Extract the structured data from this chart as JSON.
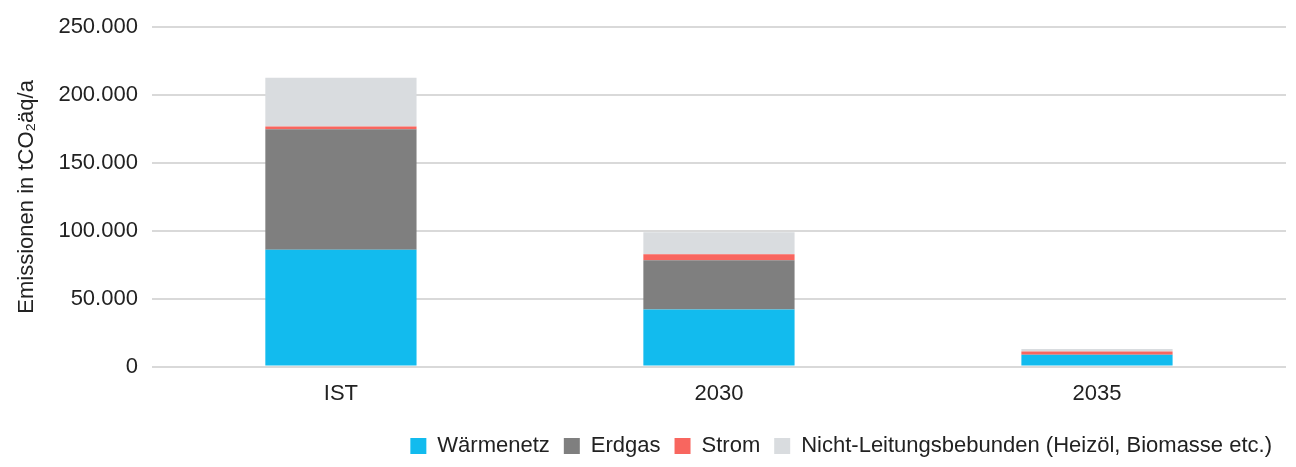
{
  "chart_data": {
    "type": "bar",
    "stacked": true,
    "ylabel": "Emissionen in tCO₂äq/a",
    "categories": [
      "IST",
      "2030",
      "2035"
    ],
    "series": [
      {
        "name": "Wärmenetz",
        "color": "#12bbee",
        "values": [
          86000,
          42000,
          8700
        ]
      },
      {
        "name": "Erdgas",
        "color": "#7f7f7f",
        "values": [
          88800,
          36300,
          0
        ]
      },
      {
        "name": "Strom",
        "color": "#f8665f",
        "values": [
          2000,
          4400,
          2500
        ]
      },
      {
        "name": "Nicht-Leitungsbebunden (Heizöl, Biomasse etc.)",
        "color": "#d9dcdf",
        "values": [
          36000,
          16200,
          1800
        ]
      }
    ],
    "ylim": [
      0,
      250000
    ],
    "yticks": [
      {
        "value": 0,
        "label": "0"
      },
      {
        "value": 50000,
        "label": "50.000"
      },
      {
        "value": 100000,
        "label": "100.000"
      },
      {
        "value": 150000,
        "label": "150.000"
      },
      {
        "value": 200000,
        "label": "200.000"
      },
      {
        "value": 250000,
        "label": "250.000"
      }
    ],
    "grid": "y",
    "legend": "bottom"
  }
}
